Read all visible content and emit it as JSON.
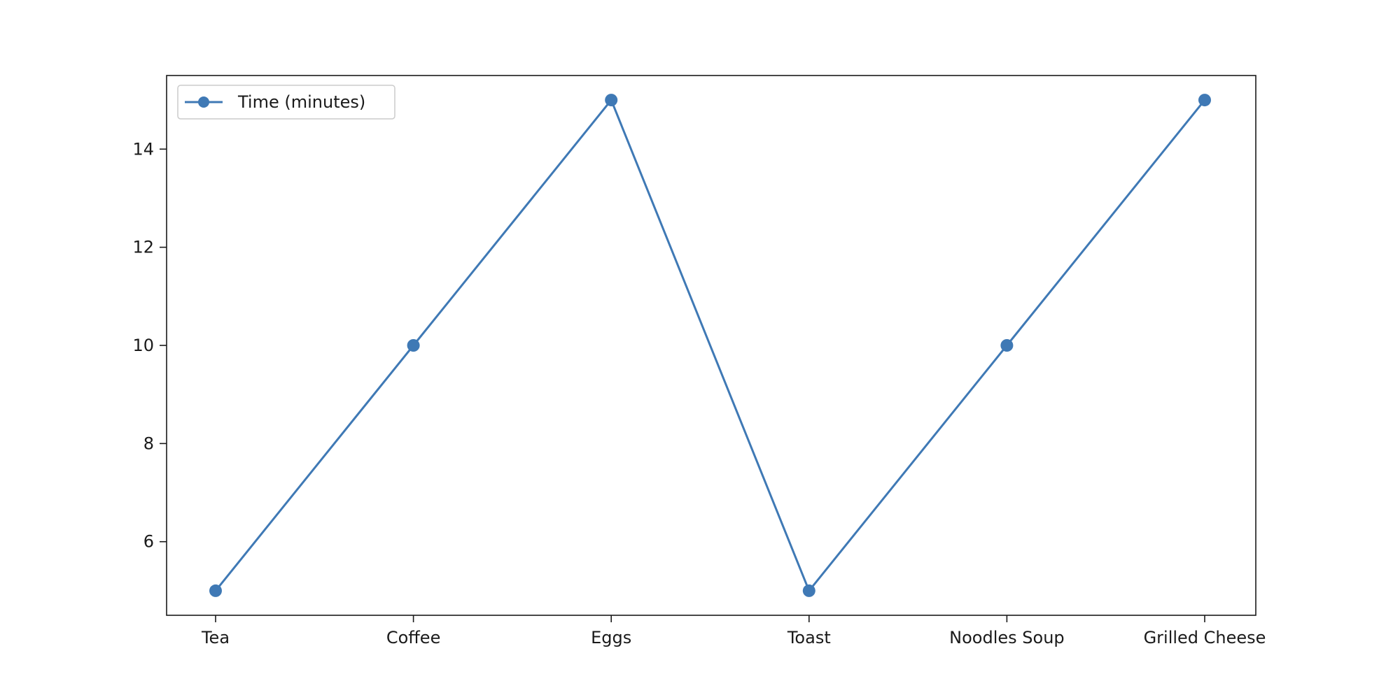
{
  "chart_data": {
    "type": "line",
    "categories": [
      "Tea",
      "Coffee",
      "Eggs",
      "Toast",
      "Noodles Soup",
      "Grilled Cheese"
    ],
    "series": [
      {
        "name": "Time (minutes)",
        "values": [
          5,
          10,
          15,
          5,
          10,
          15
        ],
        "color": "#3f79b5",
        "marker": "circle"
      }
    ],
    "title": "",
    "xlabel": "",
    "ylabel": "",
    "ylim": [
      4.5,
      15.5
    ],
    "yticks": [
      6,
      8,
      10,
      12,
      14
    ],
    "ytick_labels": [
      "6",
      "8",
      "10",
      "12",
      "14"
    ],
    "grid": false,
    "legend_position": "top-left"
  }
}
